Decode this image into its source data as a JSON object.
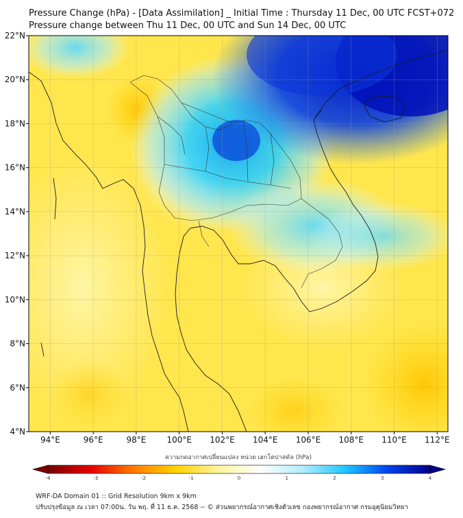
{
  "title_line1": "Pressure Change (hPa) - [Data Assimilation] _ Initial Time : Thursday 11 Dec, 00 UTC FCST+072",
  "title_line2": "Pressure change between Thu 11 Dec, 00 UTC and Sun 14 Dec, 00 UTC",
  "map": {
    "lon_range": [
      93,
      112.5
    ],
    "lat_range": [
      4,
      22
    ],
    "lon_ticks": [
      94,
      96,
      98,
      100,
      102,
      104,
      106,
      108,
      110,
      112
    ],
    "lat_ticks": [
      4,
      6,
      8,
      10,
      12,
      14,
      16,
      18,
      20,
      22
    ],
    "lon_tick_labels": [
      "94°E",
      "96°E",
      "98°E",
      "100°E",
      "102°E",
      "104°E",
      "106°E",
      "108°E",
      "110°E",
      "112°E"
    ],
    "lat_tick_labels": [
      "4°N",
      "6°N",
      "8°N",
      "10°N",
      "12°N",
      "14°N",
      "16°N",
      "18°N",
      "20°N",
      "22°N"
    ],
    "grid": true
  },
  "colorbar": {
    "title": "ความกดอากาศเปลี่ยนแปลง หน่วย เฮกโตปาสคัล (hPa)",
    "min": -4,
    "max": 4,
    "tick_values": [
      -4,
      -3,
      -2,
      -1,
      0,
      1,
      2,
      3,
      4
    ],
    "tick_labels": [
      "-4",
      "-3",
      "-2",
      "-1",
      "0",
      "1",
      "2",
      "3",
      "4"
    ],
    "colors": [
      "#7a0000",
      "#e60000",
      "#ff7a00",
      "#ffd200",
      "#fff59a",
      "#ffffff",
      "#b3ecff",
      "#1ec8ff",
      "#0044ee",
      "#00008a"
    ]
  },
  "footer_line1": "WRF-DA Domain 01 :: Grid Resolution 9km x 9km",
  "footer_line2": "ปรับปรุงข้อมูล ณ เวลา 07:00น. วัน พฤ. ที่ 11 ธ.ค. 2568 -- © ส่วนพยากรณ์อากาศเชิงตัวเลข กองพยากรณ์อากาศ กรมอุตุนิยมวิทยา"
}
